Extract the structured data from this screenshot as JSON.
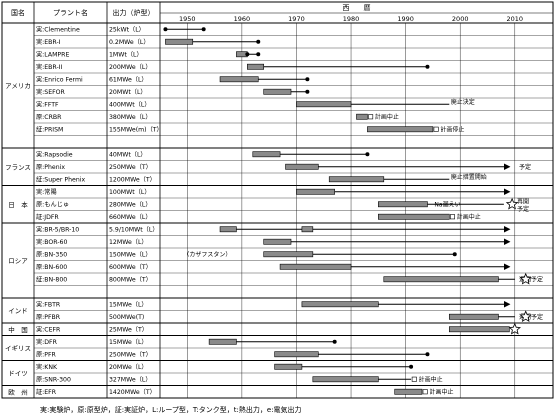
{
  "headers": {
    "country": "国名",
    "plant": "プラント名",
    "output": "出力（炉型）",
    "era": "西　　暦"
  },
  "legend": "実:実験炉，原:原型炉，証:実証炉，L:ループ型，T:タンク型，t:熱出力，e:電気出力",
  "chart_data": {
    "type": "timeline",
    "xlim": [
      1945,
      2017
    ],
    "ticks": [
      1950,
      1960,
      1970,
      1980,
      1990,
      2000,
      2010
    ],
    "groups": [
      {
        "country": "アメリカ",
        "start": 0,
        "end": 9
      },
      {
        "country": "フランス",
        "start": 10,
        "end": 12
      },
      {
        "country": "日　本",
        "start": 13,
        "end": 15
      },
      {
        "country": "ロシア",
        "start": 16,
        "end": 21
      },
      {
        "country": "インド",
        "start": 22,
        "end": 23
      },
      {
        "country": "中　国",
        "start": 24,
        "end": 24
      },
      {
        "country": "イギリス",
        "start": 25,
        "end": 26
      },
      {
        "country": "ドイツ",
        "start": 27,
        "end": 28
      },
      {
        "country": "欧　州",
        "start": 29,
        "end": 29
      }
    ],
    "rows": [
      {
        "plant": "実:Clementine",
        "output": "25kWt（L）",
        "dots": [
          1946,
          1953
        ],
        "bar": null,
        "arrow": false,
        "star": null,
        "note": ""
      },
      {
        "plant": "実:EBR-I",
        "output": "0.2MWe（L）",
        "dots": [
          1963
        ],
        "bar": [
          1946,
          1951
        ],
        "arrow": false,
        "star": null,
        "note": ""
      },
      {
        "plant": "実:LAMPRE",
        "output": "1MWt（L）",
        "dots": [
          1961,
          1963
        ],
        "bar": [
          1959,
          1961
        ],
        "arrow": false,
        "star": null,
        "note": ""
      },
      {
        "plant": "実:EBR-II",
        "output": "200MWe（L）",
        "dots": [
          1994
        ],
        "bar": [
          1961,
          1964
        ],
        "arrow": false,
        "star": null,
        "note": ""
      },
      {
        "plant": "実:Enrico Fermi",
        "output": "61MWe（L）",
        "dots": [
          1972
        ],
        "bar": [
          1956,
          1963
        ],
        "arrow": false,
        "star": null,
        "note": ""
      },
      {
        "plant": "実:SEFOR",
        "output": "20MWt（L）",
        "dots": [
          1972
        ],
        "bar": [
          1964,
          1969
        ],
        "arrow": false,
        "star": null,
        "note": ""
      },
      {
        "plant": "実:FFTF",
        "output": "400MWt（L）",
        "dots": [],
        "bar": [
          1970,
          1980
        ],
        "arrow": false,
        "star": null,
        "note": "廃止決定",
        "note_x": 1998,
        "line_end": 1998
      },
      {
        "plant": "原:CRBR",
        "output": "380MWe（L）",
        "dots": [],
        "bar": [
          1981,
          1983
        ],
        "arrow": false,
        "star": null,
        "note": "計画中止",
        "note_x": 1983
      },
      {
        "plant": "証:PRISM",
        "output": "155MWe(m)（T）",
        "dots": [],
        "bar": [
          1983,
          1995
        ],
        "arrow": false,
        "star": null,
        "note": "計画停止",
        "note_x": 1995
      },
      {
        "plant": "",
        "output": "",
        "dots": [],
        "bar": null,
        "arrow": false,
        "star": null,
        "note": ""
      },
      {
        "plant": "実:Rapsodie",
        "output": "40MWt（L）",
        "dots": [
          1983
        ],
        "bar": [
          1962,
          1967
        ],
        "arrow": false,
        "star": null,
        "note": ""
      },
      {
        "plant": "原:Phenix",
        "output": "250MWe（T）",
        "dots": [],
        "bar": [
          1968,
          1974
        ],
        "arrow": true,
        "star": null,
        "note": "予定",
        "note_x": 2010.5,
        "line_end": 2009
      },
      {
        "plant": "証:Super Phenix",
        "output": "1200MWe（T）",
        "dots": [],
        "bar": [
          1976,
          1986
        ],
        "arrow": false,
        "star": null,
        "note": "廃止措置開始",
        "note_x": 1998,
        "line_end": 1998
      },
      {
        "plant": "実:常陽",
        "output": "100MWt（L）",
        "dots": [],
        "bar": [
          1970,
          1977
        ],
        "arrow": true,
        "star": null,
        "note": "",
        "line_end": 2009
      },
      {
        "plant": "原:もんじゅ",
        "output": "280MWe（L）",
        "dots": [],
        "bar": [
          1985,
          1994
        ],
        "arrow": false,
        "star": 2009.5,
        "note": "Na漏えい",
        "note_x": 1995,
        "note2": "再開",
        "note3": "予定",
        "line_end": 2008
      },
      {
        "plant": "証:JDFR",
        "output": "660MWe（L）",
        "dots": [],
        "bar": [
          1985,
          1998
        ],
        "arrow": false,
        "star": null,
        "note": "計画中止",
        "note_x": 1998
      },
      {
        "plant": "実:BR-5/BR-10",
        "output": "5.9/10MWt（L）",
        "dots": [],
        "bar": [
          1956,
          1959
        ],
        "arrow": true,
        "star": null,
        "note": "",
        "line_end": 2009,
        "bar2": [
          1971,
          1973
        ]
      },
      {
        "plant": "実:BOR-60",
        "output": "12MWe（L）",
        "dots": [],
        "bar": [
          1964,
          1969
        ],
        "arrow": true,
        "star": null,
        "note": "",
        "line_end": 2009
      },
      {
        "plant": "原:BN-350",
        "output": "150MWe（L）",
        "dots": [
          1999
        ],
        "bar": [
          1964,
          1973
        ],
        "arrow": false,
        "star": null,
        "note": "（カザフスタン）",
        "note_x": 1949
      },
      {
        "plant": "原:BN-600",
        "output": "600MWe（T）",
        "dots": [],
        "bar": [
          1967,
          1980
        ],
        "arrow": true,
        "star": null,
        "note": "",
        "line_end": 2009
      },
      {
        "plant": "証:BN-800",
        "output": "800MWe（T）",
        "dots": [],
        "bar": [
          1986,
          2007
        ],
        "arrow": false,
        "star": 2012,
        "note": "運開予定",
        "note_x": 2010.5,
        "line_end": 2010
      },
      {
        "plant": "",
        "output": "",
        "dots": [],
        "bar": null,
        "arrow": false,
        "star": null,
        "note": ""
      },
      {
        "plant": "実:FBTR",
        "output": "15MWe（L）",
        "dots": [],
        "bar": [
          1971,
          1985
        ],
        "arrow": true,
        "star": null,
        "note": "",
        "line_end": 2009
      },
      {
        "plant": "原:PFBR",
        "output": "500MWe(T)",
        "dots": [],
        "bar": [
          1998,
          2007
        ],
        "arrow": false,
        "star": 2012,
        "note": "運開予定",
        "note_x": 2010.5,
        "line_end": 2010
      },
      {
        "plant": "実:CEFR",
        "output": "25MWe（T）",
        "dots": [],
        "bar": [
          1998,
          2009
        ],
        "arrow": false,
        "star": 2010,
        "note": "",
        "line_end": 2009
      },
      {
        "plant": "実:DFR",
        "output": "15MWe（L）",
        "dots": [
          1977
        ],
        "bar": [
          1954,
          1959
        ],
        "arrow": false,
        "star": null,
        "note": ""
      },
      {
        "plant": "原:PFR",
        "output": "250MWe（T）",
        "dots": [
          1994
        ],
        "bar": [
          1966,
          1974
        ],
        "arrow": false,
        "star": null,
        "note": ""
      },
      {
        "plant": "実:KNK",
        "output": "20MWe（L）",
        "dots": [
          1991
        ],
        "bar": [
          1966,
          1971
        ],
        "arrow": false,
        "star": null,
        "note": ""
      },
      {
        "plant": "原:SNR-300",
        "output": "327MWe（L）",
        "dots": [],
        "bar": [
          1973,
          1985
        ],
        "arrow": false,
        "star": null,
        "note": "計画中止",
        "note_x": 1991,
        "line_end": 1991
      },
      {
        "plant": "証:EFR",
        "output": "1420MWe（T）",
        "dots": [],
        "bar": [
          1988,
          1993
        ],
        "arrow": false,
        "star": null,
        "note": "計画中止",
        "note_x": 1993
      }
    ]
  }
}
